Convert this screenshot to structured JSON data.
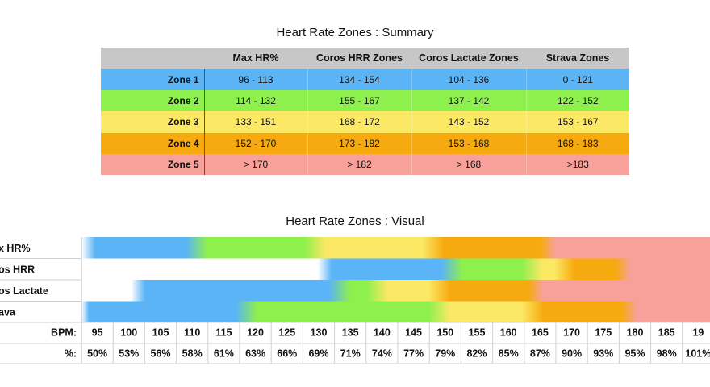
{
  "summary": {
    "title": "Heart Rate Zones : Summary",
    "columns": [
      "",
      "Max HR%",
      "Coros HRR Zones",
      "Coros Lactate Zones",
      "Strava Zones"
    ],
    "rows": [
      {
        "zone": "Zone 1",
        "color": "#5ab4f5",
        "values": [
          "96 - 113",
          "134 - 154",
          "104 - 136",
          "0 - 121"
        ]
      },
      {
        "zone": "Zone 2",
        "color": "#8ef04d",
        "values": [
          "114 - 132",
          "155 - 167",
          "137 - 142",
          "122 - 152"
        ]
      },
      {
        "zone": "Zone 3",
        "color": "#fbe865",
        "values": [
          "133 - 151",
          "168 - 172",
          "143 - 152",
          "153 - 167"
        ]
      },
      {
        "zone": "Zone 4",
        "color": "#f7aa0f",
        "values": [
          "152 - 170",
          "173 - 182",
          "153 - 168",
          "168 - 183"
        ]
      },
      {
        "zone": "Zone 5",
        "color": "#f8a19a",
        "values": [
          "> 170",
          "> 182",
          "> 168",
          ">183"
        ]
      }
    ]
  },
  "chart_data": {
    "type": "heatmap",
    "title": "Heart Rate Zones : Visual",
    "zone_colors": {
      "zone1": "#5ab4f5",
      "zone2": "#8ef04d",
      "zone3": "#fbe865",
      "zone4": "#f7aa0f",
      "zone5": "#f8a19a"
    },
    "rows": [
      {
        "label": "x HR%",
        "zones": [
          [
            96,
            113
          ],
          [
            114,
            132
          ],
          [
            133,
            151
          ],
          [
            152,
            170
          ],
          [
            170,
            196
          ]
        ]
      },
      {
        "label": "os HRR",
        "zones": [
          [
            134,
            154
          ],
          [
            155,
            167
          ],
          [
            168,
            172
          ],
          [
            173,
            182
          ],
          [
            182,
            196
          ]
        ]
      },
      {
        "label": "os Lactate",
        "zones": [
          [
            104,
            136
          ],
          [
            137,
            142
          ],
          [
            143,
            152
          ],
          [
            153,
            168
          ],
          [
            168,
            196
          ]
        ]
      },
      {
        "label": "ava",
        "zones": [
          [
            95,
            121
          ],
          [
            122,
            152
          ],
          [
            153,
            167
          ],
          [
            168,
            183
          ],
          [
            183,
            196
          ]
        ]
      }
    ],
    "bpm_label": "BPM:",
    "pct_label": "%:",
    "bpm_ticks": [
      "95",
      "100",
      "105",
      "110",
      "115",
      "120",
      "125",
      "130",
      "135",
      "140",
      "145",
      "150",
      "155",
      "160",
      "165",
      "170",
      "175",
      "180",
      "185",
      "19"
    ],
    "pct_ticks": [
      "50%",
      "53%",
      "56%",
      "58%",
      "61%",
      "63%",
      "66%",
      "69%",
      "71%",
      "74%",
      "77%",
      "79%",
      "82%",
      "85%",
      "87%",
      "90%",
      "93%",
      "95%",
      "98%",
      "101%"
    ],
    "x_range": [
      95,
      196
    ]
  }
}
